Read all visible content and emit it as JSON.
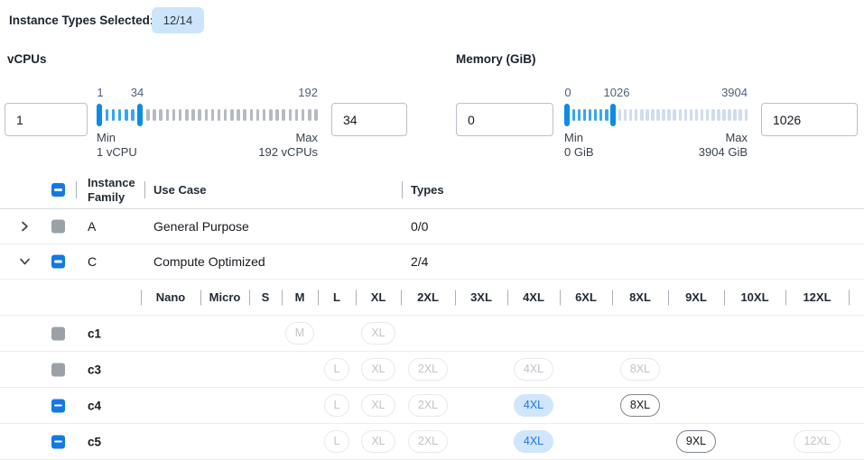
{
  "header": {
    "label": "Instance Types Selected:",
    "badge": "12/14"
  },
  "sliders": [
    {
      "title": "vCPUs",
      "left_input": "1",
      "right_input": "34",
      "scale_low": "1",
      "scale_mid": "34",
      "scale_high": "192",
      "min_caption": "Min",
      "min_value": "1 vCPU",
      "max_caption": "Max",
      "max_value": "192 vCPUs"
    },
    {
      "title": "Memory (GiB)",
      "left_input": "0",
      "right_input": "1026",
      "scale_low": "0",
      "scale_mid": "1026",
      "scale_high": "3904",
      "min_caption": "Min",
      "min_value": "0 GiB",
      "max_caption": "Max",
      "max_value": "3904 GiB"
    }
  ],
  "table": {
    "columns": {
      "family": "Instance Family",
      "use_case": "Use Case",
      "types": "Types"
    },
    "family_rows": [
      {
        "family": "A",
        "use_case": "General Purpose",
        "types": "0/0",
        "expanded": false,
        "checkbox": "disabled"
      },
      {
        "family": "C",
        "use_case": "Compute Optimized",
        "types": "2/4",
        "expanded": true,
        "checkbox": "indeterminate"
      }
    ],
    "size_columns": [
      "Nano",
      "Micro",
      "S",
      "M",
      "L",
      "XL",
      "2XL",
      "3XL",
      "4XL",
      "6XL",
      "8XL",
      "9XL",
      "10XL",
      "12XL"
    ],
    "instance_rows": [
      {
        "name": "c1",
        "checkbox": "disabled",
        "pills": [
          {
            "size": "M",
            "state": "disabled"
          },
          {
            "size": "XL",
            "state": "disabled"
          }
        ]
      },
      {
        "name": "c3",
        "checkbox": "disabled",
        "pills": [
          {
            "size": "L",
            "state": "disabled"
          },
          {
            "size": "XL",
            "state": "disabled"
          },
          {
            "size": "2XL",
            "state": "disabled"
          },
          {
            "size": "4XL",
            "state": "disabled"
          },
          {
            "size": "8XL",
            "state": "disabled"
          }
        ]
      },
      {
        "name": "c4",
        "checkbox": "indeterminate",
        "pills": [
          {
            "size": "L",
            "state": "disabled"
          },
          {
            "size": "XL",
            "state": "disabled"
          },
          {
            "size": "2XL",
            "state": "disabled"
          },
          {
            "size": "4XL",
            "state": "selected"
          },
          {
            "size": "8XL",
            "state": "enabled"
          }
        ]
      },
      {
        "name": "c5",
        "checkbox": "indeterminate",
        "pills": [
          {
            "size": "L",
            "state": "disabled"
          },
          {
            "size": "XL",
            "state": "disabled"
          },
          {
            "size": "2XL",
            "state": "disabled"
          },
          {
            "size": "4XL",
            "state": "selected"
          },
          {
            "size": "9XL",
            "state": "enabled"
          },
          {
            "size": "12XL",
            "state": "disabled"
          }
        ]
      }
    ]
  },
  "colors": {
    "accent_blue": "#1479e0",
    "badge_bg": "#cde5fa",
    "slider_handle": "#0d8be8",
    "slider_active_tick": "#38a5f2",
    "slider_rest_tick_vcpu": "#b6bac0",
    "slider_rest_tick_memory": "#cfdcee",
    "selected_pill_bg": "#cfe6fb",
    "selected_pill_text": "#2277dd",
    "disabled_checkbox": "#9ba1a9"
  }
}
